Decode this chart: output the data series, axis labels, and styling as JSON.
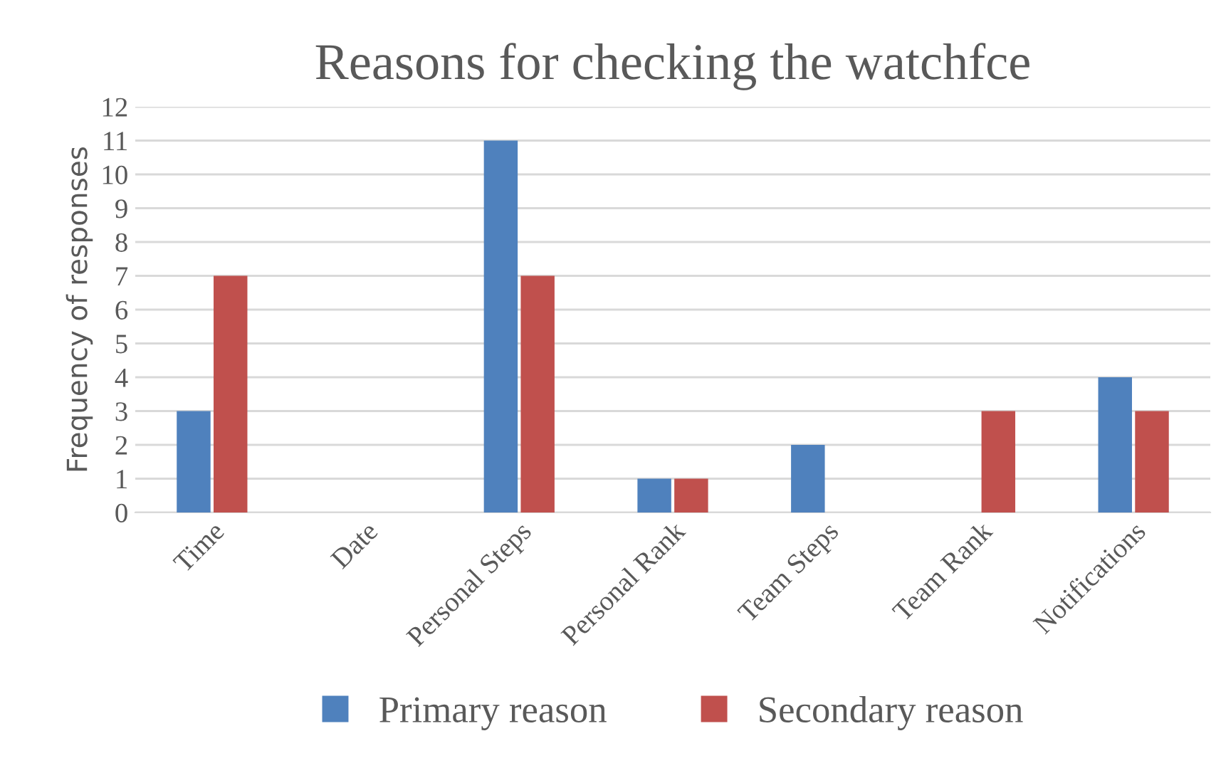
{
  "chart_data": {
    "type": "bar",
    "title": "Reasons for checking the watchfce",
    "ylabel": "Frequency of responses",
    "categories": [
      "Time",
      "Date",
      "Personal Steps",
      "Personal Rank",
      "Team Steps",
      "Team Rank",
      "Notifications"
    ],
    "series": [
      {
        "name": "Primary reason",
        "color": "#4f81bd",
        "values": [
          3,
          0,
          11,
          1,
          2,
          0,
          4
        ]
      },
      {
        "name": "Secondary reason",
        "color": "#c0504d",
        "values": [
          7,
          0,
          7,
          1,
          0,
          3,
          3
        ]
      }
    ],
    "ylim": [
      0,
      12
    ],
    "yticks": [
      0,
      1,
      2,
      3,
      4,
      5,
      6,
      7,
      8,
      9,
      10,
      11,
      12
    ],
    "grid": "y",
    "legend": "bottom"
  }
}
